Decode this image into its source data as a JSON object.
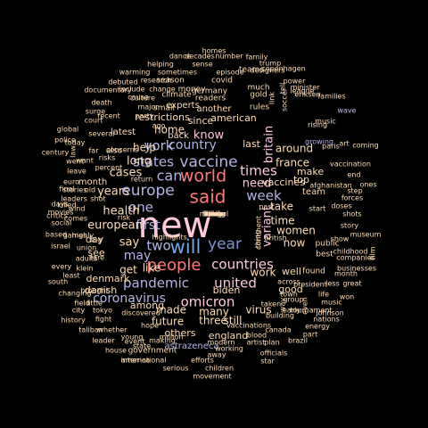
{
  "words": [
    {
      "text": "new",
      "color": "#ffc8dc"
    },
    {
      "text": "said",
      "color": "#ff7878"
    },
    {
      "text": "world",
      "color": "#ff7878"
    },
    {
      "text": "people",
      "color": "#ff7878"
    },
    {
      "text": "will",
      "color": "#6fa8dc"
    },
    {
      "text": "year",
      "color": "#7f8fcf"
    },
    {
      "text": "vaccine",
      "color": "#b4b4e6"
    },
    {
      "text": "europe",
      "color": "#b4b4e6"
    },
    {
      "text": "pandemic",
      "color": "#b4b4e6"
    },
    {
      "text": "united",
      "color": "#ffc8dc"
    },
    {
      "text": "countries",
      "color": "#ffc8dc"
    },
    {
      "text": "one",
      "color": "#b4b4e6"
    },
    {
      "text": "two",
      "color": "#b4b4e6"
    },
    {
      "text": "can",
      "color": "#b4b4e6"
    },
    {
      "text": "week",
      "color": "#b4b4e6"
    },
    {
      "text": "times",
      "color": "#ffc8dc"
    },
    {
      "text": "states",
      "color": "#b4b4e6"
    },
    {
      "text": "country",
      "color": "#b4b4e6"
    },
    {
      "text": "omicron",
      "color": "#ffc8dc"
    },
    {
      "text": "coronavirus",
      "color": "#b4b4e6"
    },
    {
      "text": "first",
      "color": "#b4b4e6"
    },
    {
      "text": "may",
      "color": "#b4b4e6"
    },
    {
      "text": "say",
      "color": "#ffdcb4"
    },
    {
      "text": "york",
      "color": "#b4b4e6"
    },
    {
      "text": "know",
      "color": "#ffc8dc"
    },
    {
      "text": "need",
      "color": "#ffc8dc"
    },
    {
      "text": "variant",
      "color": "#ffc8dc"
    },
    {
      "text": "britain",
      "color": "#ffc8dc"
    },
    {
      "text": "long",
      "color": "#ffdcb4"
    },
    {
      "text": "home",
      "color": "#ffdcb4"
    },
    {
      "text": "european",
      "color": "#ffdcb4"
    },
    {
      "text": "years",
      "color": "#ffdcb4"
    },
    {
      "text": "cases",
      "color": "#ffdcb4"
    },
    {
      "text": "take",
      "color": "#ffdcb4"
    },
    {
      "text": "health",
      "color": "#ffdcb4"
    },
    {
      "text": "time",
      "color": "#ffdcb4"
    },
    {
      "text": "work",
      "color": "#ffdcb4"
    },
    {
      "text": "like",
      "color": "#ffdcb4"
    },
    {
      "text": "many",
      "color": "#ffdcb4"
    },
    {
      "text": "made",
      "color": "#ffdcb4"
    },
    {
      "text": "help",
      "color": "#ffdcb4"
    },
    {
      "text": "now",
      "color": "#ffdcb4"
    },
    {
      "text": "women",
      "color": "#ffdcb4"
    },
    {
      "text": "around",
      "color": "#ffdcb4"
    },
    {
      "text": "france",
      "color": "#ffdcb4"
    },
    {
      "text": "virus",
      "color": "#ffdcb4"
    },
    {
      "text": "three",
      "color": "#ffdcb4"
    },
    {
      "text": "still",
      "color": "#ffdcb4"
    },
    {
      "text": "future",
      "color": "#ffdcb4"
    },
    {
      "text": "england",
      "color": "#ffdcb4"
    },
    {
      "text": "well",
      "color": "#ffdcb4"
    },
    {
      "text": "get",
      "color": "#ffdcb4"
    },
    {
      "text": "among",
      "color": "#ffdcb4"
    },
    {
      "text": "others",
      "color": "#ffdcb4"
    },
    {
      "text": "denmark",
      "color": "#ffdcb4"
    },
    {
      "text": "danish",
      "color": "#ffdcb4"
    },
    {
      "text": "see",
      "color": "#ffdcb4"
    },
    {
      "text": "day",
      "color": "#ffdcb4"
    },
    {
      "text": "vaccines",
      "color": "#ffdcb4"
    },
    {
      "text": "top",
      "color": "#ffdcb4"
    },
    {
      "text": "make",
      "color": "#ffdcb4"
    },
    {
      "text": "last",
      "color": "#ffdcb4"
    },
    {
      "text": "since",
      "color": "#ffdcb4"
    },
    {
      "text": "good",
      "color": "#ffdcb4"
    },
    {
      "text": "biden",
      "color": "#ffdcb4"
    },
    {
      "text": "government",
      "color": "#ffdcb4"
    },
    {
      "text": "astrazeneca",
      "color": "#b4b4e6"
    },
    {
      "text": "restrictions",
      "color": "#ffdcb4"
    },
    {
      "text": "american",
      "color": "#ffdcb4"
    },
    {
      "text": "another",
      "color": "#ffdcb4"
    },
    {
      "text": "back",
      "color": "#ffdcb4"
    },
    {
      "text": "month",
      "color": "#ffdcb4"
    },
    {
      "text": "team",
      "color": "#ffdcb4"
    },
    {
      "text": "public",
      "color": "#ffdcb4"
    },
    {
      "text": "found",
      "color": "#ffdcb4"
    },
    {
      "text": "best",
      "color": "#ffdcb4"
    },
    {
      "text": "latest",
      "color": "#ffdcb4"
    },
    {
      "text": "also",
      "color": "#ffdcb4"
    },
    {
      "text": "experts",
      "color": "#ffdcb4"
    },
    {
      "text": "germany",
      "color": "#ffdcb4"
    },
    {
      "text": "climate",
      "color": "#ffdcb4"
    },
    {
      "text": "covid",
      "color": "#ffdcb4"
    },
    {
      "text": "money",
      "color": "#ffdcb4"
    },
    {
      "text": "readers",
      "color": "#ffdcb4"
    },
    {
      "text": "small",
      "color": "#ffdcb4"
    },
    {
      "text": "season",
      "color": "#ffdcb4"
    },
    {
      "text": "rules",
      "color": "#ffdcb4"
    },
    {
      "text": "gold",
      "color": "#ffdcb4"
    },
    {
      "text": "much",
      "color": "#ffdcb4"
    },
    {
      "text": "teams",
      "color": "#ffdcb4"
    },
    {
      "text": "soccer",
      "color": "#ffdcb4"
    },
    {
      "text": "rising",
      "color": "#ffdcb4"
    },
    {
      "text": "wave",
      "color": "#b4b4e6"
    },
    {
      "text": "growing",
      "color": "#b4b4e6"
    },
    {
      "text": "music",
      "color": "#ffdcb4"
    },
    {
      "text": "eriksen",
      "color": "#ffdcb4"
    },
    {
      "text": "minister",
      "color": "#ffdcb4"
    },
    {
      "text": "league",
      "color": "#ffdcb4"
    },
    {
      "text": "families",
      "color": "#ffdcb4"
    },
    {
      "text": "power",
      "color": "#ffdcb4"
    },
    {
      "text": "designers",
      "color": "#ffdcb4"
    },
    {
      "text": "copenhagen",
      "color": "#ffdcb4"
    },
    {
      "text": "trump",
      "color": "#ffdcb4"
    },
    {
      "text": "family",
      "color": "#ffdcb4"
    },
    {
      "text": "number",
      "color": "#ffdcb4"
    },
    {
      "text": "homes",
      "color": "#ffdcb4"
    },
    {
      "text": "dance",
      "color": "#ffdcb4"
    },
    {
      "text": "decades",
      "color": "#ffdcb4"
    },
    {
      "text": "helping",
      "color": "#ffdcb4"
    },
    {
      "text": "sense",
      "color": "#ffdcb4"
    },
    {
      "text": "warming",
      "color": "#ffdcb4"
    },
    {
      "text": "sometimes",
      "color": "#ffdcb4"
    },
    {
      "text": "episode",
      "color": "#ffdcb4"
    },
    {
      "text": "debuted",
      "color": "#ffdcb4"
    },
    {
      "text": "research",
      "color": "#ffdcb4"
    },
    {
      "text": "documentary",
      "color": "#ffdcb4"
    },
    {
      "text": "include",
      "color": "#ffdcb4"
    },
    {
      "text": "change",
      "color": "#ffdcb4"
    },
    {
      "text": "culture",
      "color": "#ffdcb4"
    },
    {
      "text": "cause",
      "color": "#ffdcb4"
    },
    {
      "text": "death",
      "color": "#ffdcb4"
    },
    {
      "text": "major",
      "color": "#ffdcb4"
    },
    {
      "text": "surge",
      "color": "#ffdcb4"
    },
    {
      "text": "recent",
      "color": "#ffdcb4"
    },
    {
      "text": "party",
      "color": "#ffdcb4"
    },
    {
      "text": "court",
      "color": "#ffdcb4"
    },
    {
      "text": "ago",
      "color": "#ffdcb4"
    },
    {
      "text": "global",
      "color": "#ffdcb4"
    },
    {
      "text": "police",
      "color": "#ffdcb4"
    },
    {
      "text": "several",
      "color": "#ffdcb4"
    },
    {
      "text": "return",
      "color": "#ffdcb4"
    },
    {
      "text": "today",
      "color": "#ffdcb4"
    },
    {
      "text": "concerns",
      "color": "#ffdcb4"
    },
    {
      "text": "century",
      "color": "#ffdcb4"
    },
    {
      "text": "far",
      "color": "#ffdcb4"
    },
    {
      "text": "risks",
      "color": "#ffdcb4"
    },
    {
      "text": "went",
      "color": "#ffdcb4"
    },
    {
      "text": "leave",
      "color": "#ffdcb4"
    },
    {
      "text": "want",
      "color": "#ffdcb4"
    },
    {
      "text": "percent",
      "color": "#ffdcb4"
    },
    {
      "text": "euro",
      "color": "#ffdcb4"
    },
    {
      "text": "final",
      "color": "#ffdcb4"
    },
    {
      "text": "leaders",
      "color": "#ffdcb4"
    },
    {
      "text": "stories",
      "color": "#ffdcb4"
    },
    {
      "text": "old",
      "color": "#ffdcb4"
    },
    {
      "text": "shot",
      "color": "#ffdcb4"
    },
    {
      "text": "days",
      "color": "#ffdcb4"
    },
    {
      "text": "killed",
      "color": "#ffdcb4"
    },
    {
      "text": "wind",
      "color": "#ffdcb4"
    },
    {
      "text": "critics",
      "color": "#ffdcb4"
    },
    {
      "text": "movies",
      "color": "#ffdcb4"
    },
    {
      "text": "comes",
      "color": "#ffdcb4"
    },
    {
      "text": "social",
      "color": "#ffdcb4"
    },
    {
      "text": "based",
      "color": "#ffdcb4"
    },
    {
      "text": "games",
      "color": "#ffdcb4"
    },
    {
      "text": "highly",
      "color": "#ffdcb4"
    },
    {
      "text": "big",
      "color": "#ffdcb4"
    },
    {
      "text": "israel",
      "color": "#ffdcb4"
    },
    {
      "text": "union",
      "color": "#ffdcb4"
    },
    {
      "text": "adults",
      "color": "#ffdcb4"
    },
    {
      "text": "every",
      "color": "#ffdcb4"
    },
    {
      "text": "least",
      "color": "#ffdcb4"
    },
    {
      "text": "south",
      "color": "#ffdcb4"
    },
    {
      "text": "klein",
      "color": "#ffdcb4"
    },
    {
      "text": "changing",
      "color": "#ffdcb4"
    },
    {
      "text": "brought",
      "color": "#ffdcb4"
    },
    {
      "text": "field",
      "color": "#ffdcb4"
    },
    {
      "text": "little",
      "color": "#ffdcb4"
    },
    {
      "text": "city",
      "color": "#ffdcb4"
    },
    {
      "text": "tokyo",
      "color": "#ffdcb4"
    },
    {
      "text": "history",
      "color": "#ffdcb4"
    },
    {
      "text": "fight",
      "color": "#ffdcb4"
    },
    {
      "text": "taliban",
      "color": "#ffdcb4"
    },
    {
      "text": "whether",
      "color": "#ffdcb4"
    },
    {
      "text": "leader",
      "color": "#ffdcb4"
    },
    {
      "text": "discovered",
      "color": "#ffdcb4"
    },
    {
      "text": "young",
      "color": "#ffdcb4"
    },
    {
      "text": "hope",
      "color": "#ffdcb4"
    },
    {
      "text": "million",
      "color": "#ffdcb4"
    },
    {
      "text": "state",
      "color": "#ffdcb4"
    },
    {
      "text": "event",
      "color": "#ffdcb4"
    },
    {
      "text": "making",
      "color": "#ffdcb4"
    },
    {
      "text": "house",
      "color": "#ffdcb4"
    },
    {
      "text": "international",
      "color": "#ffdcb4"
    },
    {
      "text": "america",
      "color": "#ffdcb4"
    },
    {
      "text": "serious",
      "color": "#ffdcb4"
    },
    {
      "text": "efforts",
      "color": "#ffdcb4"
    },
    {
      "text": "children",
      "color": "#ffdcb4"
    },
    {
      "text": "movement",
      "color": "#ffdcb4"
    },
    {
      "text": "away",
      "color": "#ffdcb4"
    },
    {
      "text": "modern",
      "color": "#ffdcb4"
    },
    {
      "text": "working",
      "color": "#ffdcb4"
    },
    {
      "text": "vaccinations",
      "color": "#ffdcb4"
    },
    {
      "text": "blood",
      "color": "#ffdcb4"
    },
    {
      "text": "canada",
      "color": "#ffdcb4"
    },
    {
      "text": "artist",
      "color": "#ffdcb4"
    },
    {
      "text": "plan",
      "color": "#ffdcb4"
    },
    {
      "text": "star",
      "color": "#ffdcb4"
    },
    {
      "text": "officials",
      "color": "#ffdcb4"
    },
    {
      "text": "brazil",
      "color": "#ffdcb4"
    },
    {
      "text": "part",
      "color": "#ffdcb4"
    },
    {
      "text": "energy",
      "color": "#ffdcb4"
    },
    {
      "text": "tournament",
      "color": "#ffdcb4"
    },
    {
      "text": "early",
      "color": "#ffdcb4"
    },
    {
      "text": "building",
      "color": "#ffdcb4"
    },
    {
      "text": "taken",
      "color": "#ffdcb4"
    },
    {
      "text": "group",
      "color": "#ffdcb4"
    },
    {
      "text": "town",
      "color": "#ffdcb4"
    },
    {
      "text": "way",
      "color": "#ffdcb4"
    },
    {
      "text": "even",
      "color": "#ffdcb4"
    },
    {
      "text": "life",
      "color": "#ffdcb4"
    },
    {
      "text": "won",
      "color": "#ffdcb4"
    },
    {
      "text": "music",
      "color": "#ffdcb4"
    },
    {
      "text": "johnson",
      "color": "#ffdcb4"
    },
    {
      "text": "nations",
      "color": "#ffdcb4"
    },
    {
      "text": "less",
      "color": "#ffdcb4"
    },
    {
      "text": "great",
      "color": "#ffdcb4"
    },
    {
      "text": "month",
      "color": "#ffdcb4"
    },
    {
      "text": "businesses",
      "color": "#ffdcb4"
    },
    {
      "text": "companies",
      "color": "#ffdcb4"
    },
    {
      "text": "childhood",
      "color": "#ffdcb4"
    },
    {
      "text": "show",
      "color": "#ffdcb4"
    },
    {
      "text": "museum",
      "color": "#ffdcb4"
    },
    {
      "text": "story",
      "color": "#ffdcb4"
    },
    {
      "text": "shots",
      "color": "#ffdcb4"
    },
    {
      "text": "doses",
      "color": "#ffdcb4"
    },
    {
      "text": "forces",
      "color": "#ffdcb4"
    },
    {
      "text": "step",
      "color": "#ffdcb4"
    },
    {
      "text": "ones",
      "color": "#ffdcb4"
    },
    {
      "text": "end",
      "color": "#ffdcb4"
    },
    {
      "text": "afghanistan",
      "color": "#ffdcb4"
    },
    {
      "text": "vaccination",
      "color": "#ffdcb4"
    },
    {
      "text": "coming",
      "color": "#ffdcb4"
    },
    {
      "text": "paris",
      "color": "#ffdcb4"
    },
    {
      "text": "start",
      "color": "#ffdcb4"
    },
    {
      "text": "british",
      "color": "#ffdcb4"
    },
    {
      "text": "past",
      "color": "#ffdcb4"
    },
    {
      "text": "thing",
      "color": "#ffdcb4"
    },
    {
      "text": "highlights",
      "color": "#ffdcb4"
    },
    {
      "text": "risk",
      "color": "#ffdcb4"
    },
    {
      "text": "continent",
      "color": "#ffdcb4"
    },
    {
      "text": "across",
      "color": "#ffdcb4"
    },
    {
      "text": "president",
      "color": "#ffdcb4"
    },
    {
      "text": "art",
      "color": "#ffdcb4"
    },
    {
      "text": "rare",
      "color": "#ffdcb4"
    },
    {
      "text": "law",
      "color": "#ffdcb4"
    },
    {
      "text": "film",
      "color": "#ffdcb4"
    },
    {
      "text": "tell",
      "color": "#ffdcb4"
    },
    {
      "text": "link",
      "color": "#ffdcb4"
    },
    {
      "text": "spain",
      "color": "#ffdcb4"
    },
    {
      "text": "italy",
      "color": "#ffdcb4"
    },
    {
      "text": "follow",
      "color": "#ffdcb4"
    },
    {
      "text": "book",
      "color": "#ffdcb4"
    },
    {
      "text": "national",
      "color": "#ffdcb4"
    },
    {
      "text": "likely",
      "color": "#ffdcb4"
    },
    {
      "text": "former",
      "color": "#ffdcb4"
    },
    {
      "text": "strong",
      "color": "#ffdcb4"
    },
    {
      "text": "crisis",
      "color": "#ffdcb4"
    }
  ]
}
